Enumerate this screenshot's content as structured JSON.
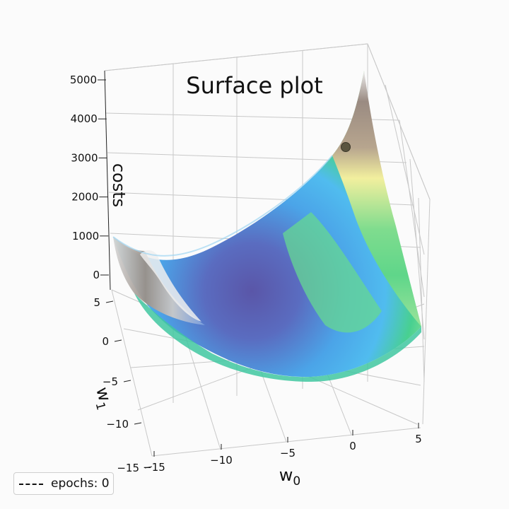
{
  "chart_data": {
    "type": "surface3d",
    "title": "Surface plot",
    "xlabel": "w_0",
    "ylabel": "w_1",
    "zlabel": "costs",
    "x_ticks": [
      "−15",
      "−10",
      "−5",
      "0",
      "5"
    ],
    "y_ticks": [
      "−15",
      "−10",
      "−5",
      "0",
      "5"
    ],
    "z_ticks": [
      "0",
      "1000",
      "2000",
      "3000",
      "4000",
      "5000"
    ],
    "xlim": [
      -15,
      5
    ],
    "ylim": [
      -15,
      5
    ],
    "zlim": [
      0,
      5000
    ],
    "colormap": "terrain",
    "marker": {
      "w0": 3.5,
      "w1": -13,
      "cost": 3800,
      "color": "#5a5540"
    },
    "legend": {
      "label": "epochs: 0",
      "placement": "lower-left",
      "line_style": "dashed"
    }
  }
}
